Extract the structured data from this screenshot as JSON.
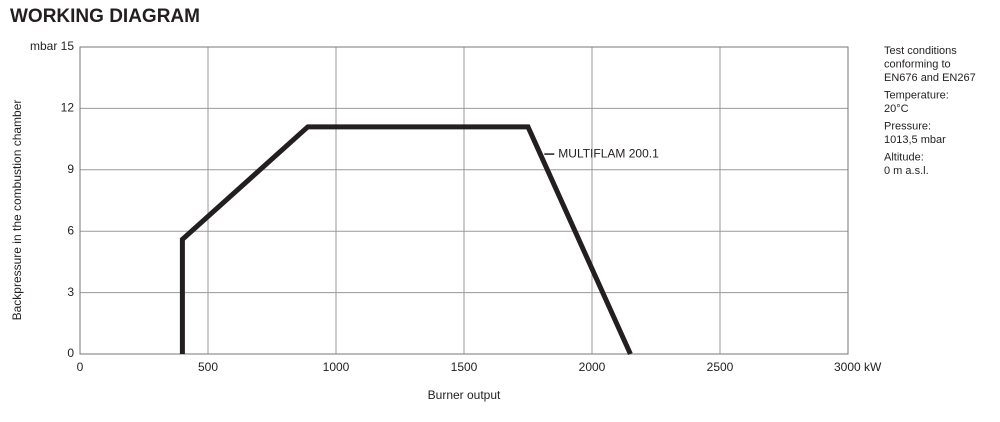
{
  "chart_data": {
    "type": "line",
    "title": "WORKING DIAGRAM",
    "x_label": "Burner output",
    "y_label": "Backpressure in the combustion chamber",
    "x": [
      400,
      400,
      890,
      1750,
      2150
    ],
    "series": [
      {
        "name": "MULTIFLAM 200.1",
        "color": "#231f20",
        "values": [
          0,
          5.6,
          11.1,
          11.1,
          0
        ]
      }
    ],
    "xlim": [
      0,
      3000
    ],
    "xticks": [
      0,
      500,
      1000,
      1500,
      2000,
      2500,
      {
        "value": 3000,
        "label": "3000 kW"
      }
    ],
    "ylim": [
      0,
      15
    ],
    "yticks": [
      0,
      3,
      6,
      9,
      12,
      {
        "value": 15,
        "label": "mbar 15"
      }
    ],
    "grid": true,
    "notes": [
      [
        "Test conditions",
        "conforming to",
        "EN676 and EN267"
      ],
      [
        "Temperature:",
        "20°C"
      ],
      [
        "Pressure:",
        "1013,5 mbar"
      ],
      [
        "Altitude:",
        "0 m a.s.l."
      ]
    ]
  }
}
